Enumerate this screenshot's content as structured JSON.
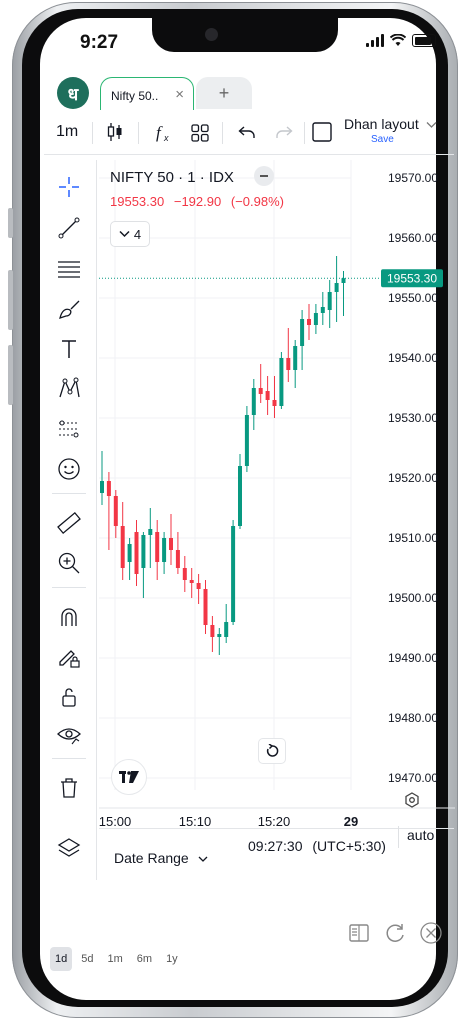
{
  "status_bar": {
    "time": "9:27"
  },
  "browser": {
    "logo_glyph": "ध",
    "active_tab": {
      "label": "Nifty 50..",
      "close": "×"
    },
    "add_tab": "+"
  },
  "toolbar": {
    "interval": "1m",
    "layout_name": "Dhan layout",
    "layout_save": "Save",
    "icons": [
      "candles-icon",
      "function-icon",
      "templates-icon",
      "undo-icon",
      "redo-icon",
      "checkbox-icon",
      "chevron-down-icon"
    ]
  },
  "drawing_tools": [
    "crosshair-icon",
    "trend-line-icon",
    "fib-lines-icon",
    "brush-icon",
    "text-icon",
    "pattern-icon",
    "projection-icon",
    "emoji-icon",
    "ruler-icon",
    "zoom-in-icon",
    "magnet-icon",
    "lock-drawing-icon",
    "unlock-icon",
    "eye-icon",
    "trash-icon",
    "layers-icon"
  ],
  "legend": {
    "symbol": "NIFTY 50 · 1 · IDX",
    "last": "19553.30",
    "change": "−192.90",
    "change_pct": "(−0.98%)",
    "indicators_count": "4"
  },
  "colors": {
    "up": "#089981",
    "down": "#f23645",
    "brand": "#1e6f5c",
    "tab_border": "#2bb673",
    "accent": "#2962ff"
  },
  "chart_data": {
    "type": "candlestick",
    "price_axis": [
      "19570.00",
      "19560.00",
      "19550.00",
      "19540.00",
      "19530.00",
      "19520.00",
      "19510.00",
      "19500.00",
      "19490.00",
      "19480.00",
      "19470.00"
    ],
    "ylim": [
      19468,
      19572
    ],
    "time_axis": [
      "15:00",
      "15:10",
      "15:20",
      "29"
    ],
    "last_price_label": "19553.30",
    "last_price": 19553.3,
    "candles": [
      {
        "o": 19517.5,
        "h": 19524.5,
        "l": 19515.5,
        "c": 19519.5
      },
      {
        "o": 19519.5,
        "h": 19521.0,
        "l": 19508.0,
        "c": 19517.0
      },
      {
        "o": 19517.0,
        "h": 19518.0,
        "l": 19510.0,
        "c": 19512.0
      },
      {
        "o": 19512.0,
        "h": 19516.0,
        "l": 19503.0,
        "c": 19505.0
      },
      {
        "o": 19506.0,
        "h": 19510.0,
        "l": 19503.0,
        "c": 19509.0
      },
      {
        "o": 19511.0,
        "h": 19513.0,
        "l": 19502.0,
        "c": 19504.0
      },
      {
        "o": 19505.0,
        "h": 19511.0,
        "l": 19500.0,
        "c": 19510.5
      },
      {
        "o": 19510.5,
        "h": 19515.0,
        "l": 19505.0,
        "c": 19511.5
      },
      {
        "o": 19511.0,
        "h": 19513.0,
        "l": 19503.0,
        "c": 19506.0
      },
      {
        "o": 19506.0,
        "h": 19511.0,
        "l": 19504.0,
        "c": 19510.0
      },
      {
        "o": 19510.0,
        "h": 19514.0,
        "l": 19505.5,
        "c": 19508.0
      },
      {
        "o": 19508.0,
        "h": 19511.0,
        "l": 19504.0,
        "c": 19505.0
      },
      {
        "o": 19505.0,
        "h": 19507.0,
        "l": 19501.0,
        "c": 19503.0
      },
      {
        "o": 19503.0,
        "h": 19505.0,
        "l": 19500.0,
        "c": 19502.5
      },
      {
        "o": 19502.5,
        "h": 19504.0,
        "l": 19499.0,
        "c": 19501.5
      },
      {
        "o": 19501.5,
        "h": 19503.0,
        "l": 19494.0,
        "c": 19495.5
      },
      {
        "o": 19495.5,
        "h": 19497.0,
        "l": 19491.0,
        "c": 19493.5
      },
      {
        "o": 19493.5,
        "h": 19495.0,
        "l": 19490.5,
        "c": 19494.0
      },
      {
        "o": 19493.5,
        "h": 19499.0,
        "l": 19492.5,
        "c": 19496.0
      },
      {
        "o": 19496.0,
        "h": 19513.0,
        "l": 19495.5,
        "c": 19512.0
      },
      {
        "o": 19512.0,
        "h": 19524.0,
        "l": 19511.5,
        "c": 19522.0
      },
      {
        "o": 19522.0,
        "h": 19532.0,
        "l": 19521.0,
        "c": 19530.5
      },
      {
        "o": 19530.5,
        "h": 19536.5,
        "l": 19528.0,
        "c": 19535.0
      },
      {
        "o": 19535.0,
        "h": 19539.0,
        "l": 19532.5,
        "c": 19534.0
      },
      {
        "o": 19534.5,
        "h": 19537.0,
        "l": 19530.5,
        "c": 19533.0
      },
      {
        "o": 19533.0,
        "h": 19537.0,
        "l": 19530.0,
        "c": 19532.0
      },
      {
        "o": 19532.0,
        "h": 19541.0,
        "l": 19531.5,
        "c": 19540.0
      },
      {
        "o": 19540.0,
        "h": 19545.0,
        "l": 19536.0,
        "c": 19538.0
      },
      {
        "o": 19538.0,
        "h": 19543.0,
        "l": 19535.0,
        "c": 19542.0
      },
      {
        "o": 19542.0,
        "h": 19548.0,
        "l": 19538.0,
        "c": 19546.5
      },
      {
        "o": 19546.5,
        "h": 19549.0,
        "l": 19543.0,
        "c": 19545.5
      },
      {
        "o": 19545.5,
        "h": 19549.0,
        "l": 19544.0,
        "c": 19547.5
      },
      {
        "o": 19547.5,
        "h": 19551.0,
        "l": 19545.5,
        "c": 19548.5
      },
      {
        "o": 19548.0,
        "h": 19553.0,
        "l": 19545.0,
        "c": 19551.0
      },
      {
        "o": 19551.0,
        "h": 19557.0,
        "l": 19546.0,
        "c": 19552.5
      },
      {
        "o": 19552.5,
        "h": 19554.5,
        "l": 19547.0,
        "c": 19553.3
      }
    ]
  },
  "bottom": {
    "date_range": "Date Range",
    "clock": "09:27:30",
    "timezone": "(UTC+5:30)",
    "auto": "auto",
    "ranges": [
      "1d",
      "5d",
      "1m",
      "6m",
      "1y"
    ]
  }
}
